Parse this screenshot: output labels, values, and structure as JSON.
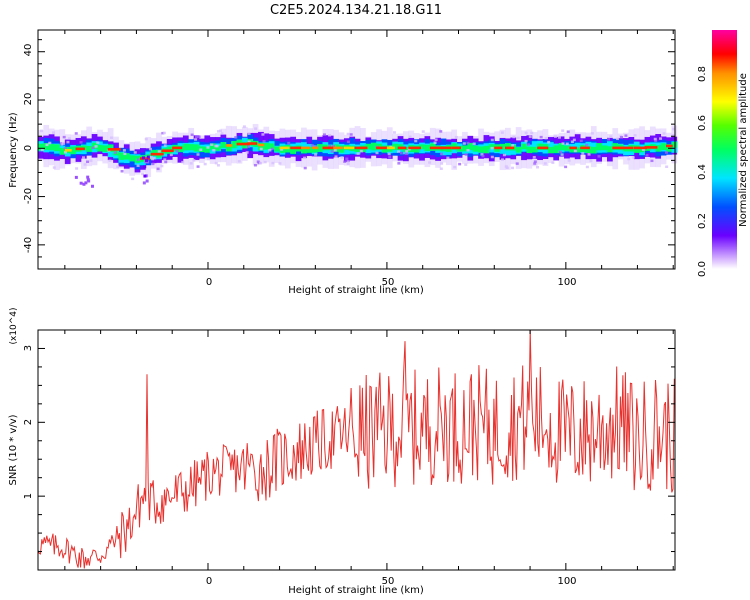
{
  "figure": {
    "title": "C2E5.2024.134.21.18.G11"
  },
  "chart_data": [
    {
      "type": "heatmap",
      "title": "C2E5.2024.134.21.18.G11",
      "xlabel": "Height of straight line (km)",
      "ylabel": "Frequency (Hz)",
      "xlim": [
        -47.5,
        130.5
      ],
      "ylim": [
        -50,
        49
      ],
      "x_ticks": [
        0,
        50,
        100
      ],
      "x_tick_labels": [
        "0",
        "50",
        "100"
      ],
      "y_ticks": [
        -40,
        -20,
        0,
        20,
        40
      ],
      "y_tick_labels": [
        "-40",
        "-20",
        "0",
        "20",
        "40"
      ],
      "colorbar": {
        "label": "Normalized spectral amplitude",
        "range": [
          0,
          1
        ],
        "ticks": [
          0.0,
          0.2,
          0.4,
          0.6,
          0.8
        ],
        "tick_labels": [
          "0.0",
          "0.2",
          "0.4",
          "0.6",
          "0.8"
        ]
      },
      "ridge": {
        "description_points_height_km": [
          -47,
          -40,
          -35,
          -30,
          -25,
          -20,
          -15,
          -10,
          0,
          10,
          20,
          40,
          60,
          80,
          100,
          120,
          130
        ],
        "center_frequency_hz": [
          1,
          -1,
          0,
          1,
          -3,
          -5,
          -2,
          0,
          0,
          2,
          0,
          0,
          0,
          0,
          0,
          0,
          1
        ]
      },
      "grid": false
    },
    {
      "type": "line",
      "xlabel": "Height of straight line (km)",
      "ylabel": "SNR (10 * v/v)",
      "multiplier": "(x10^4)",
      "xlim": [
        -47.5,
        130.5
      ],
      "ylim": [
        0,
        3.25
      ],
      "x_ticks": [
        0,
        50,
        100
      ],
      "x_tick_labels": [
        "0",
        "50",
        "100"
      ],
      "y_ticks": [
        1,
        2,
        3
      ],
      "y_tick_labels": [
        "1",
        "2",
        "3"
      ],
      "color": "#e8312d",
      "series": [
        {
          "x": [
            -47,
            -40,
            -35,
            -30,
            -27,
            -22,
            -20,
            -18,
            -15,
            -10,
            -5,
            0,
            5,
            10,
            15,
            20,
            25,
            30,
            35,
            40,
            45,
            50,
            55,
            60,
            65,
            70,
            75,
            80,
            85,
            90,
            95,
            100,
            105,
            110,
            115,
            120,
            125,
            130
          ],
          "values": [
            0.35,
            0.3,
            0.15,
            0.2,
            0.35,
            0.6,
            0.8,
            1.0,
            0.9,
            1.0,
            1.1,
            1.3,
            1.35,
            1.4,
            1.35,
            1.5,
            1.6,
            1.7,
            1.8,
            1.85,
            1.85,
            1.9,
            1.95,
            1.9,
            2.0,
            1.95,
            2.0,
            1.9,
            2.0,
            2.05,
            2.0,
            1.8,
            1.85,
            1.9,
            2.0,
            1.75,
            1.9,
            1.8
          ],
          "notable_peaks": [
            [
              -17,
              2.65
            ],
            [
              55,
              3.1
            ],
            [
              90,
              3.25
            ]
          ]
        }
      ],
      "grid": false
    }
  ]
}
